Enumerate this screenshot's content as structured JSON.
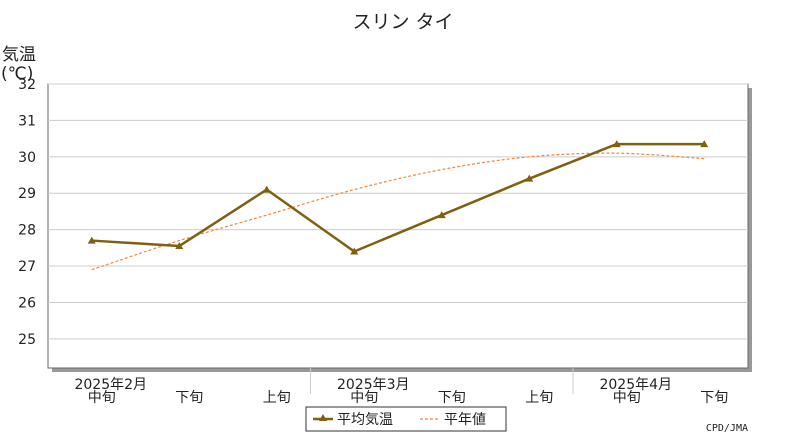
{
  "chart_data": {
    "type": "line",
    "title": "スリン タイ",
    "ylabel_line1": "気温",
    "ylabel_line2": "(℃)",
    "ylim": [
      24.2,
      32
    ],
    "yticks": [
      25,
      26,
      27,
      28,
      29,
      30,
      31,
      32
    ],
    "grid": true,
    "categories": [
      "中旬",
      "下旬",
      "上旬",
      "中旬",
      "下旬",
      "上旬",
      "中旬",
      "下旬"
    ],
    "month_labels": [
      {
        "label": "2025年2月",
        "index": 0
      },
      {
        "label": "2025年3月",
        "index": 3
      },
      {
        "label": "2025年4月",
        "index": 6
      }
    ],
    "series": [
      {
        "name": "平均気温",
        "values": [
          27.7,
          27.55,
          29.1,
          27.4,
          28.4,
          29.4,
          30.35,
          30.35
        ],
        "color": "#806010",
        "style": "solid",
        "marker": "triangle"
      },
      {
        "name": "平年値",
        "values": [
          26.9,
          27.7,
          28.4,
          29.1,
          29.65,
          30.0,
          30.1,
          29.95
        ],
        "color": "#f0883c",
        "style": "dashed"
      }
    ],
    "legend_position": "bottom-center",
    "credit": "CPD/JMA"
  }
}
